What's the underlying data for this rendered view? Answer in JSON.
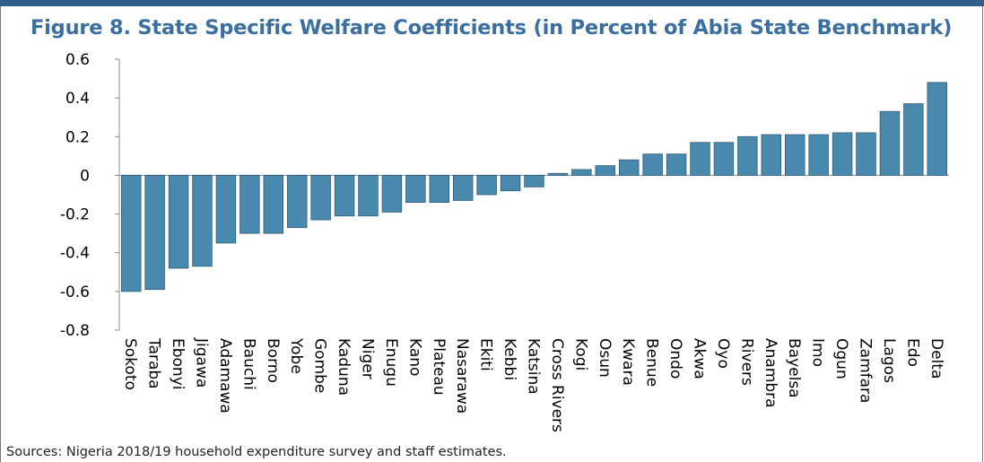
{
  "title": "Figure 8. State Specific Welfare Coefficients (in Percent of Abia State Benchmark)",
  "source": "Sources: Nigeria 2018/19 household expenditure survey and staff estimates.",
  "colors": {
    "bar": "#4a89ae",
    "bar_edge": "#2e5d7a",
    "title": "#3b6fa0",
    "top_rule": "#2f5f8a"
  },
  "chart_data": {
    "type": "bar",
    "title": "Figure 8. State Specific Welfare Coefficients (in Percent of Abia State Benchmark)",
    "xlabel": "",
    "ylabel": "",
    "ylim": [
      -0.8,
      0.6
    ],
    "yticks": [
      0.6,
      0.4,
      0.2,
      0,
      -0.2,
      -0.4,
      -0.6,
      -0.8
    ],
    "ytick_labels": [
      "0.6",
      "0.4",
      "0.2",
      "0",
      "-0.2",
      "-0.4",
      "-0.6",
      "-0.8"
    ],
    "grid": false,
    "legend": "none",
    "categories": [
      "Sokoto",
      "Taraba",
      "Ebonyi",
      "Jigawa",
      "Adamawa",
      "Bauchi",
      "Borno",
      "Yobe",
      "Gombe",
      "Kaduna",
      "Niger",
      "Enugu",
      "Kano",
      "Plateau",
      "Nasarawa",
      "Ekiti",
      "Kebbi",
      "Katsina",
      "Cross Rivers",
      "Kogi",
      "Osun",
      "Kwara",
      "Benue",
      "Ondo",
      "Akwa",
      "Oyo",
      "Rivers",
      "Anambra",
      "Bayelsa",
      "Imo",
      "Ogun",
      "Zamfara",
      "Lagos",
      "Edo",
      "Delta"
    ],
    "values": [
      -0.6,
      -0.59,
      -0.48,
      -0.47,
      -0.35,
      -0.3,
      -0.3,
      -0.27,
      -0.23,
      -0.21,
      -0.21,
      -0.19,
      -0.14,
      -0.14,
      -0.13,
      -0.1,
      -0.08,
      -0.06,
      0.01,
      0.03,
      0.05,
      0.08,
      0.11,
      0.11,
      0.17,
      0.17,
      0.2,
      0.21,
      0.21,
      0.21,
      0.22,
      0.22,
      0.33,
      0.37,
      0.48
    ]
  }
}
